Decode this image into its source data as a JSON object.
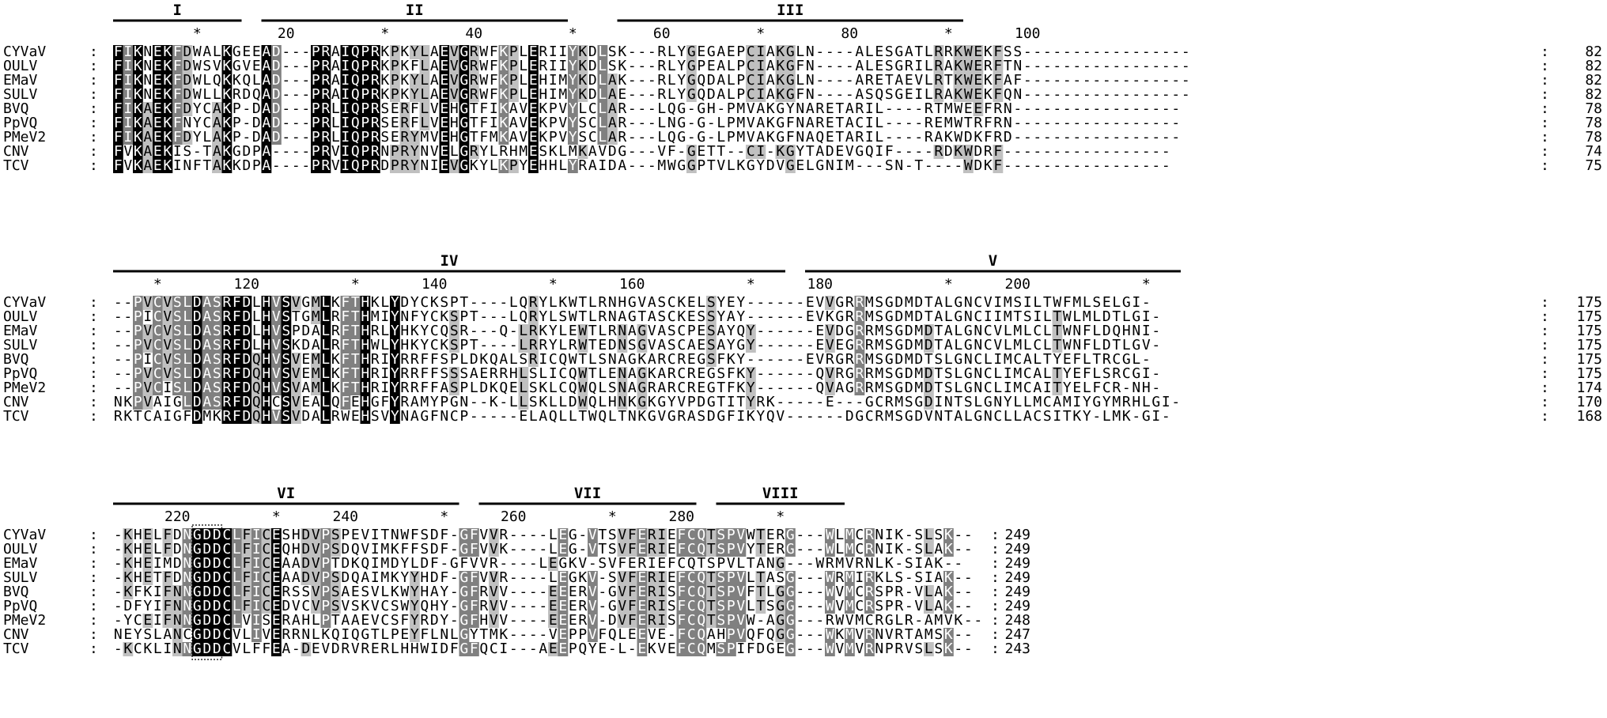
{
  "blocks": [
    {
      "motifs": [
        {
          "label": "I",
          "start": 0,
          "end": 12
        },
        {
          "label": "II",
          "start": 15,
          "end": 45
        },
        {
          "label": "III",
          "start": 51,
          "end": 85
        }
      ],
      "ruler": [
        {
          "text": "*",
          "col": 8
        },
        {
          "text": "20",
          "col": 17
        },
        {
          "text": "*",
          "col": 27
        },
        {
          "text": "40",
          "col": 36
        },
        {
          "text": "*",
          "col": 46
        },
        {
          "text": "60",
          "col": 55
        },
        {
          "text": "*",
          "col": 65
        },
        {
          "text": "80",
          "col": 74
        },
        {
          "text": "*",
          "col": 84
        },
        {
          "text": "100",
          "col": 92
        }
      ],
      "rows": [
        {
          "name": "CYVaV",
          "seq": "FIKNEKFDWALKGEEAD---PRAIQPRKPKYLAEVGRWFKPLERIIYKDLSK---RLYGEGAEPCIAKGLN----ALESGATLRRKWEKFSS-----------------",
          "count": "82"
        },
        {
          "name": "OULV",
          "seq": "FIKNEKFDWSVKGVEAD---PRAIQPRKPKFLAEVGRWFKPLERIIYKDLSK---RLYGPEALPCIAKGFN----ALESGRILRAKWERFTN-----------------",
          "count": "82"
        },
        {
          "name": "EMaV",
          "seq": "FIKNEKFDWLQKKQLAD---PRAIQPRKPKYLAEVGRWFKPLEHIMYKDLAK---RLYGQDALPCIAKGLN----ARETAEVLRTKWEKFAF-----------------",
          "count": "82"
        },
        {
          "name": "SULV",
          "seq": "FIKNEKFDWLLKRDQAD---PRAIQPRKPKYLAEVGRWFKPLEHIMYKDLAE---RLYGQDALPCIAKGFN----ASQSGEILRAKWEKFQN-----------------",
          "count": "82"
        },
        {
          "name": "BVQ",
          "seq": "FIKAEKFDYCAKP-DAD---PRLIQPRSERFLVEHGTFIKAVEKPVYLCLAR---LQG-GH-PMVAKGYNARETARIL----RTMWEEFRN-----------------",
          "count": "78"
        },
        {
          "name": "PpVQ",
          "seq": "FIKAEKFNYCAKP-DAD---PRLIQPRSERFLVEHGTFIKAVEKPVYSCLAR---LNG-G-LPMVAKGFNARETACIL----REMWTRFRN-----------------",
          "count": "78"
        },
        {
          "name": "PMeV2",
          "seq": "FIKAEKFDYLAKP-DAD---PRLIQPRSERYMVEHGTFMKAVEKPVYSCLAR---LQG-G-LPMVAKGFNAQETARIL----RAKWDKFRD-----------------",
          "count": "78"
        },
        {
          "name": "CNV",
          "seq": "FVKAEKIS-TAKGDPA----PRVIQPRNPRYNVELGRYLRHMESKLMKAVDG---VF-GETT--CI-KGYTADEVGQIF----RDKWDRF-----------------",
          "count": "74"
        },
        {
          "name": "TCV",
          "seq": "FVKAEKINFTAKKDPA----PRVIQPRDPRYNIEVGKYLKPYEHHLYRAIDA---MWGGPTVLKGYDVGELGNIM---SN-T----WDKF-----------------",
          "count": "75"
        }
      ]
    },
    {
      "motifs": [
        {
          "label": "IV",
          "start": 0,
          "end": 67
        },
        {
          "label": "V",
          "start": 70,
          "end": 107
        }
      ],
      "ruler": [
        {
          "text": "*",
          "col": 4
        },
        {
          "text": "120",
          "col": 13
        },
        {
          "text": "*",
          "col": 24
        },
        {
          "text": "140",
          "col": 32
        },
        {
          "text": "*",
          "col": 44
        },
        {
          "text": "160",
          "col": 52
        },
        {
          "text": "*",
          "col": 64
        },
        {
          "text": "180",
          "col": 71
        },
        {
          "text": "*",
          "col": 84
        },
        {
          "text": "200",
          "col": 91
        },
        {
          "text": "*",
          "col": 104
        }
      ],
      "rows": [
        {
          "name": "CYVaV",
          "seq": "--PVCVSLDASRFDLHVSVGMLKFTHKLYDYCKSPT----LQRYLKWTLRNHGVASCKELSYEY------EVVGRRMSGDMDTALGNCVIMSILTWFMLSELGI-",
          "count": "175"
        },
        {
          "name": "OULV",
          "seq": "--PICVSLDASRFDLHVSTGMLRFTHMIYNFYCKSPT---LQRYLSWTLRNAGTASCKESSYAY------EVKGRRMSGDMDTALGNCIIMTSILTWLMLDTLGI-",
          "count": "175"
        },
        {
          "name": "EMaV",
          "seq": "--PVCVSLDASRFDLHVSPDALRFTHRLYHKYCQSR---Q-LRKYLEWTLRNAGVASCPESAYQY------EVDGRRMSGDMDTALGNCVLMLCLTWNFLDQHNI-",
          "count": "175"
        },
        {
          "name": "SULV",
          "seq": "--PVCVSLDASRFDLHVSKDALRFTHWLYHKYCKSPT----LRRYLRWTEDNSGVASCAESAYGY------EVEGRRMSGDMDTALGNCVLMLCLTWNFLDTLGV-",
          "count": "175"
        },
        {
          "name": "BVQ",
          "seq": "--PICVSLDASRFDQHVSVEMLKFTHRIYRRFFSPLDKQALSRICQWTLSNAGKARCREGSFKY------EVRGRRMSGDMDTSLGNCLIMCALTYEFLTRCGL-",
          "count": "175"
        },
        {
          "name": "PpVQ",
          "seq": "--PVCVSLDASRFDQHVSVEMLKFTHRIYRRFFSSSAERRHLSLICQWTLENAGKARCREGSFKY------QVRGRRMSGDMDTSLGNCLIMCALTYEFLSRCGI-",
          "count": "175"
        },
        {
          "name": "PMeV2",
          "seq": "--PVCISLDASRFDQHVSVAMLKFTHRIYRRFFASPLDKQELSKLCQWQLSNAGRARCREGTFKY------QVAGRRMSGDMDTSLGNCLIMCAITYELFCR-NH-",
          "count": "174"
        },
        {
          "name": "CNV",
          "seq": "NKPVAIGLDASRFDQHCSVEALQFEHGFYRAMYPGN--K-LLSKLLDWQLHNKGKGYVPDGTITYRK-----E---GCRMSGDINTSLGNYLLMCAMIYGYMRHLGI-",
          "count": "170"
        },
        {
          "name": "TCV",
          "seq": "RKTCAIGFDMKRFDQHVSVDALRWEHSVYNAGFNCP-----ELAQLLTWQLTNKGVGRASDGFIKYQV------DGCRMSGDVNTALGNCLLACSITKY-LMK-GI-",
          "count": "168"
        }
      ]
    },
    {
      "motifs": [
        {
          "label": "VI",
          "start": 0,
          "end": 34
        },
        {
          "label": "VII",
          "start": 37,
          "end": 58
        },
        {
          "label": "VIII",
          "start": 61,
          "end": 73
        }
      ],
      "ruler": [
        {
          "text": "220",
          "col": 6
        },
        {
          "text": "*",
          "col": 16
        },
        {
          "text": "240",
          "col": 23
        },
        {
          "text": "*",
          "col": 33
        },
        {
          "text": "260",
          "col": 40
        },
        {
          "text": "*",
          "col": 50
        },
        {
          "text": "280",
          "col": 57
        },
        {
          "text": "*",
          "col": 67
        }
      ],
      "rows": [
        {
          "name": "CYVaV",
          "seq": "-KHELFDNGDDCLFICESHDVPSPEVITNWFSDF-GFVVR----LEG-VTSVFERIEFCQTSPVWTERG---WLMCRNIK-SLSK--",
          "count": "249"
        },
        {
          "name": "OULV",
          "seq": "-KHELFDNGDDCLFICEQHDVPSDQVIMKFFSDF-GFVVK----LEG-VTSVFERIEFCQTSPVYTERG---WLMCRNIK-SLAK--",
          "count": "249"
        },
        {
          "name": "EMaV",
          "seq": "-KHEIMDNGDDCLFICEAADVPTDKQIMDYLDF-GFVVR----LEGKV-SVFERIEFCQTSPVLTANG---WRMVRNLK-SIAK--",
          "count": "249"
        },
        {
          "name": "SULV",
          "seq": "-KHETFDNGDDCLFICEAADVPSDQAIMKYYHDF-GFVVR----LEGKV-SVFERIEFCQTSPVLTASG---WRMIRKLS-SIAK--",
          "count": "249"
        },
        {
          "name": "BVQ",
          "seq": "-KFKIFNNGDDCLFICERSSVPSAESVLKWYHAY-GFRVV----EEERV-GVFERISFCQTSPVFTLGG---WVMCRSPR-VLAK--",
          "count": "249"
        },
        {
          "name": "PpVQ",
          "seq": "-DFYIFNNGDDCLFICEDVCVPSVSKVCSWYQHY-GFRVV----EEERV-GVFERISFCQTSPVLTSGG---WVMCRSPR-VLAK--",
          "count": "249"
        },
        {
          "name": "PMeV2",
          "seq": "-YCEIFNNGDDCLVISERAHLPTAAEVCSFYRDY-GFHVV----EEERV-DVFERISFCQTSPVW-AGG---RWVMCRGLR-AMVK--",
          "count": "248"
        },
        {
          "name": "CNV",
          "seq": "NEYSLANCGDDCVLIVERRNLKQIQGTLPEYFLNLGYTMK----VEPPVFQLEEVE-FCQAHPVQFQGG---WKMVRNVRTAMSK--",
          "count": "247"
        },
        {
          "name": "TCV",
          "seq": "-KCKLINNGDDCVLFFEA-DEVDRVRERLHHWIDFGFQCI---AEEPQYE-L-EKVEFCQMSPIFDGEG---WVMVRNPRVSLSK--",
          "count": "243"
        }
      ]
    }
  ],
  "colors": {
    "black": "#000000",
    "dark": "#808080",
    "light": "#c0c0c0",
    "text": "#000000",
    "white": "#ffffff"
  }
}
